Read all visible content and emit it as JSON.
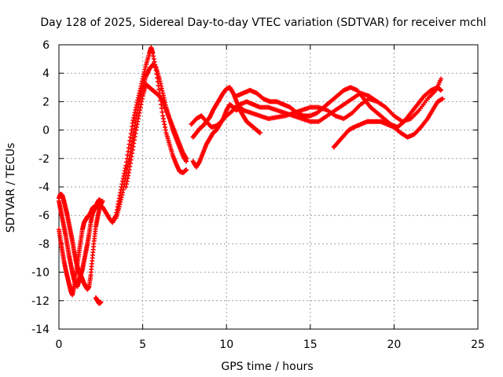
{
  "chart_data": {
    "type": "scatter",
    "title": "Day 128 of 2025, Sidereal Day-to-day VTEC variation (SDTVAR) for receiver mchl",
    "xlabel": "GPS time / hours",
    "ylabel": "SDTVAR / TECUs",
    "xlim": [
      0,
      25
    ],
    "ylim": [
      -14,
      6
    ],
    "xticks": [
      0,
      5,
      10,
      15,
      20,
      25
    ],
    "yticks": [
      -14,
      -12,
      -10,
      -8,
      -6,
      -4,
      -2,
      0,
      2,
      4,
      6
    ],
    "xtick_labels": [
      "0",
      "5",
      "10",
      "15",
      "20",
      "25"
    ],
    "ytick_labels": [
      "-14",
      "-12",
      "-10",
      "-8",
      "-6",
      "-4",
      "-2",
      "0",
      "2",
      "4",
      "6"
    ],
    "grid": true,
    "marker": "+",
    "color": "#ff0000",
    "series": [
      {
        "name": "trace-1",
        "x": [
          0.0,
          0.1,
          0.2,
          0.3,
          0.4,
          0.5,
          0.6,
          0.7,
          0.8,
          0.9,
          1.0,
          1.1,
          1.2,
          1.3,
          1.4,
          1.5,
          1.6,
          1.7,
          1.8,
          1.9,
          2.0,
          2.1
        ],
        "y": [
          -7.0,
          -7.8,
          -8.5,
          -9.2,
          -9.8,
          -10.3,
          -10.8,
          -11.3,
          -11.6,
          -11.0,
          -10.2,
          -9.4,
          -8.6,
          -7.8,
          -7.0,
          -6.5,
          -6.3,
          -6.1,
          -6.0,
          -5.8,
          -5.5,
          -5.4
        ]
      },
      {
        "name": "trace-2",
        "x": [
          0.0,
          0.1,
          0.2,
          0.3,
          0.4,
          0.5,
          0.6,
          0.7,
          0.8,
          0.9,
          1.0,
          1.1,
          1.2,
          1.3,
          1.4,
          1.5,
          1.6,
          1.7,
          1.8,
          1.9,
          2.0,
          2.1,
          2.2,
          2.3,
          2.4,
          2.5
        ],
        "y": [
          -5.0,
          -5.6,
          -6.2,
          -6.8,
          -7.4,
          -8.1,
          -8.8,
          -9.4,
          -10.0,
          -10.5,
          -10.8,
          -11.0,
          -10.6,
          -10.2,
          -9.8,
          -9.2,
          -8.6,
          -8.0,
          -7.3,
          -6.5,
          -5.9,
          -5.6,
          -5.4,
          -5.1,
          -4.9,
          -5.0
        ]
      },
      {
        "name": "trace-3",
        "x": [
          0.0,
          0.1,
          0.2,
          0.3,
          0.4,
          0.5,
          0.6,
          0.7,
          0.8,
          0.9,
          1.0,
          1.1,
          1.2,
          1.3,
          1.4,
          1.5,
          1.6,
          1.7,
          1.8,
          1.9,
          2.0,
          2.1,
          2.2,
          2.3,
          2.4,
          2.5,
          2.6
        ],
        "y": [
          -4.8,
          -4.5,
          -4.6,
          -5.0,
          -5.5,
          -6.0,
          -6.6,
          -7.2,
          -7.8,
          -8.5,
          -9.1,
          -9.6,
          -10.0,
          -10.2,
          -10.5,
          -10.8,
          -11.0,
          -11.2,
          -11.0,
          -10.2,
          -9.0,
          -7.8,
          -6.8,
          -6.2,
          -5.6,
          -5.2,
          -5.0
        ]
      },
      {
        "name": "trace-4",
        "x": [
          2.2,
          2.3,
          2.4,
          2.5
        ],
        "y": [
          -11.8,
          -12.0,
          -12.2,
          -12.1
        ]
      },
      {
        "name": "trace-5",
        "x": [
          2.6,
          2.8,
          3.0,
          3.2,
          3.4,
          3.6,
          3.8,
          4.0,
          4.2,
          4.4,
          4.6,
          4.8,
          5.0,
          5.2,
          5.4,
          5.5,
          5.6,
          5.8,
          6.0,
          6.2,
          6.4,
          6.6,
          6.8,
          7.0,
          7.2,
          7.4,
          7.6
        ],
        "y": [
          -5.4,
          -5.8,
          -6.2,
          -6.5,
          -6.0,
          -4.8,
          -3.6,
          -2.5,
          -1.0,
          0.5,
          1.6,
          2.6,
          3.6,
          4.6,
          5.4,
          5.8,
          5.4,
          4.2,
          2.6,
          1.0,
          -0.2,
          -1.0,
          -1.8,
          -2.4,
          -2.9,
          -3.0,
          -2.8
        ]
      },
      {
        "name": "trace-6",
        "x": [
          3.4,
          3.6,
          3.8,
          4.0,
          4.2,
          4.4,
          4.6,
          4.8,
          5.0,
          5.2,
          5.4,
          5.6,
          5.8,
          6.0,
          6.2,
          6.4,
          6.6,
          6.8,
          7.0,
          7.2,
          7.4,
          7.6
        ],
        "y": [
          -6.2,
          -5.4,
          -4.4,
          -3.2,
          -2.0,
          -0.6,
          0.8,
          2.0,
          3.0,
          3.8,
          4.3,
          4.6,
          4.4,
          3.6,
          2.6,
          1.6,
          0.8,
          0.0,
          -0.6,
          -1.2,
          -1.8,
          -2.2
        ]
      },
      {
        "name": "trace-7",
        "x": [
          4.0,
          4.2,
          4.4,
          4.6,
          4.8,
          5.0,
          5.2,
          5.4,
          5.6,
          5.8,
          6.0,
          6.2,
          6.4,
          6.6,
          6.8,
          7.0,
          7.2,
          7.4,
          7.6
        ],
        "y": [
          -4.0,
          -2.8,
          -1.4,
          0.0,
          1.2,
          2.4,
          3.2,
          3.0,
          2.8,
          2.6,
          2.4,
          2.0,
          1.4,
          0.8,
          0.2,
          -0.4,
          -1.0,
          -1.6,
          -2.0
        ]
      },
      {
        "name": "trace-8",
        "x": [
          8.0,
          8.2,
          8.4,
          8.6,
          8.8,
          9.0,
          9.2,
          9.4,
          9.6,
          9.8,
          10.0,
          10.2,
          10.4,
          10.6,
          10.8,
          11.0,
          11.2,
          11.4,
          11.6,
          11.8,
          12.0
        ],
        "y": [
          -0.5,
          -0.2,
          0.1,
          0.3,
          0.6,
          0.9,
          1.4,
          1.8,
          2.2,
          2.6,
          2.9,
          3.0,
          2.6,
          2.0,
          1.4,
          1.0,
          0.6,
          0.4,
          0.2,
          0.0,
          -0.2
        ]
      },
      {
        "name": "trace-9",
        "x": [
          8.0,
          8.2,
          8.4,
          8.6,
          8.8,
          9.0,
          9.2,
          9.4,
          9.6,
          9.8,
          10.0,
          10.2,
          10.4,
          10.6,
          10.8,
          11.0
        ],
        "y": [
          -2.2,
          -2.6,
          -2.2,
          -1.6,
          -1.0,
          -0.6,
          -0.2,
          0.0,
          0.4,
          0.8,
          1.4,
          1.8,
          1.6,
          1.4,
          1.6,
          1.4
        ]
      },
      {
        "name": "trace-10",
        "x": [
          7.9,
          8.2,
          8.5,
          8.8,
          9.1,
          9.4,
          9.7,
          10.0,
          10.4,
          10.8,
          11.2,
          11.6,
          12.0,
          12.5,
          13.0,
          13.5,
          14.0,
          14.5,
          15.0,
          15.5,
          16.0,
          16.5,
          17.0,
          17.5,
          18.0,
          18.5,
          19.0
        ],
        "y": [
          0.4,
          0.8,
          1.0,
          0.6,
          0.2,
          0.3,
          0.6,
          1.0,
          1.4,
          1.8,
          2.0,
          1.8,
          1.6,
          1.6,
          1.4,
          1.2,
          1.0,
          0.8,
          0.6,
          0.6,
          1.0,
          1.4,
          1.8,
          2.2,
          2.6,
          2.4,
          2.0
        ]
      },
      {
        "name": "trace-11",
        "x": [
          10.6,
          11.0,
          11.4,
          11.8,
          12.2,
          12.6,
          13.0,
          13.4,
          13.8,
          14.2,
          14.6,
          15.0,
          15.4,
          15.8,
          16.2,
          16.6,
          17.0,
          17.4,
          17.8,
          18.2,
          18.6,
          19.0,
          19.4,
          19.8,
          20.2,
          20.6,
          21.0,
          21.4,
          21.8,
          22.2,
          22.6,
          22.8
        ],
        "y": [
          2.4,
          2.6,
          2.8,
          2.6,
          2.2,
          2.0,
          2.0,
          1.8,
          1.6,
          1.2,
          1.0,
          1.0,
          1.2,
          1.6,
          2.0,
          2.4,
          2.8,
          3.0,
          2.8,
          2.2,
          1.6,
          1.2,
          0.8,
          0.4,
          0.2,
          0.6,
          1.2,
          1.8,
          2.4,
          2.8,
          3.0,
          2.8
        ]
      },
      {
        "name": "trace-12",
        "x": [
          10.5,
          11.0,
          11.5,
          12.0,
          12.5,
          13.0,
          13.5,
          14.0,
          14.5,
          15.0,
          15.5,
          16.0,
          16.5,
          17.0,
          17.5,
          18.0,
          18.5,
          19.0,
          19.5,
          20.0,
          20.5,
          21.0,
          21.5,
          22.0,
          22.5,
          22.8
        ],
        "y": [
          1.6,
          1.4,
          1.2,
          1.0,
          0.8,
          0.9,
          1.0,
          1.2,
          1.4,
          1.6,
          1.6,
          1.4,
          1.0,
          0.8,
          1.2,
          1.8,
          2.2,
          2.0,
          1.6,
          1.0,
          0.6,
          0.8,
          1.4,
          2.2,
          2.8,
          3.6
        ]
      },
      {
        "name": "trace-13",
        "x": [
          16.4,
          16.7,
          17.0,
          17.3,
          17.6,
          18.0,
          18.4,
          18.8,
          19.2,
          19.6,
          20.0,
          20.4,
          20.8,
          21.2,
          21.6,
          22.0,
          22.3,
          22.6,
          22.9
        ],
        "y": [
          -1.2,
          -0.8,
          -0.4,
          0.0,
          0.2,
          0.4,
          0.6,
          0.6,
          0.6,
          0.4,
          0.2,
          -0.2,
          -0.5,
          -0.3,
          0.2,
          0.8,
          1.4,
          2.0,
          2.2
        ]
      }
    ]
  }
}
